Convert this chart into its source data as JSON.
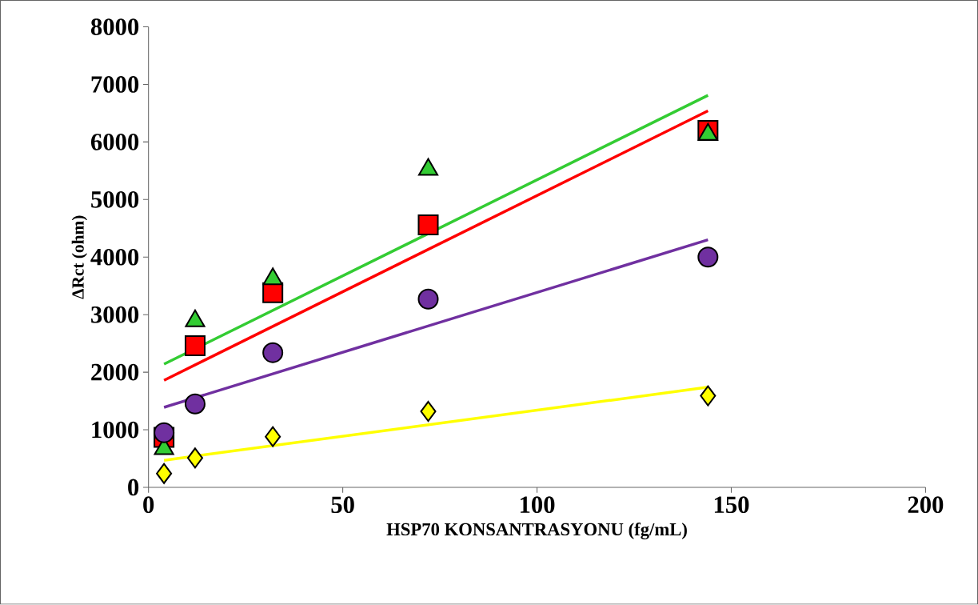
{
  "chart_data": {
    "type": "scatter",
    "xlabel": "HSP70 KONSANTRASYONU (fg/mL)",
    "ylabel": "ΔRct (ohm)",
    "xlim": [
      0,
      200
    ],
    "ylim": [
      0,
      8000
    ],
    "xticks": [
      0,
      50,
      100,
      150,
      200
    ],
    "yticks": [
      0,
      1000,
      2000,
      3000,
      4000,
      5000,
      6000,
      7000,
      8000
    ],
    "series": [
      {
        "type": "line",
        "color": "#ffff00",
        "x": [
          4,
          144
        ],
        "values": [
          470,
          1740
        ]
      },
      {
        "type": "line",
        "color": "#7030a0",
        "x": [
          4,
          144
        ],
        "values": [
          1390,
          4300
        ]
      },
      {
        "type": "line",
        "color": "#ff0000",
        "x": [
          4,
          144
        ],
        "values": [
          1860,
          6540
        ]
      },
      {
        "type": "line",
        "color": "#33cc33",
        "x": [
          4,
          144
        ],
        "values": [
          2140,
          6810
        ]
      },
      {
        "marker": "square",
        "color": "#ff0000",
        "x": [
          4,
          12,
          32,
          72,
          144
        ],
        "values": [
          870,
          2460,
          3380,
          4560,
          6200
        ]
      },
      {
        "marker": "triangle",
        "color": "#33cc33",
        "x": [
          4,
          12,
          32,
          72,
          144
        ],
        "values": [
          670,
          2890,
          3620,
          5520,
          6130
        ]
      },
      {
        "marker": "circle",
        "color": "#7030a0",
        "x": [
          4,
          12,
          32,
          72,
          144
        ],
        "values": [
          950,
          1450,
          2340,
          3270,
          4000
        ]
      },
      {
        "marker": "diamond",
        "color": "#ffff00",
        "x": [
          4,
          12,
          32,
          72,
          144
        ],
        "values": [
          240,
          510,
          880,
          1320,
          1590
        ]
      }
    ]
  }
}
